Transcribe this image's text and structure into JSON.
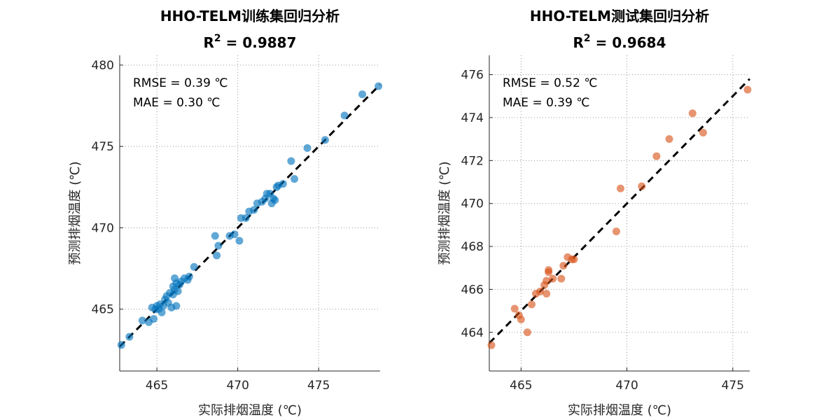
{
  "chart_data": [
    {
      "type": "scatter",
      "title": "HHO-TELM训练集回归分析",
      "r2_label": "R",
      "r2_sup": "2",
      "r2_value": " = 0.9887",
      "xlabel": "实际排烟温度 (℃)",
      "ylabel": "预测排烟温度 (℃)",
      "metrics": [
        "RMSE = 0.39 ℃",
        "MAE = 0.30 ℃"
      ],
      "xlim": [
        462.7,
        478.8
      ],
      "ylim": [
        461.2,
        480.6
      ],
      "xticks": [
        465,
        470,
        475
      ],
      "yticks": [
        465,
        470,
        475,
        480
      ],
      "grid": true,
      "point_color": "#0072BD",
      "fit_line": {
        "x": [
          462.7,
          478.8
        ],
        "y": [
          462.7,
          478.8
        ]
      },
      "series": [
        {
          "x": [
            462.8,
            463.3,
            464.1,
            464.5,
            464.7,
            464.8,
            464.9,
            465.0,
            465.1,
            465.2,
            465.3,
            465.4,
            465.5,
            465.6,
            465.7,
            465.8,
            465.9,
            466.0,
            466.0,
            466.1,
            466.1,
            466.2,
            466.2,
            466.3,
            466.4,
            466.5,
            466.7,
            466.9,
            467.0,
            467.3,
            468.6,
            468.7,
            468.8,
            469.5,
            469.8,
            470.1,
            470.2,
            470.5,
            470.7,
            471.0,
            471.2,
            471.5,
            471.7,
            471.8,
            472.0,
            472.1,
            472.2,
            472.3,
            472.4,
            472.5,
            472.8,
            473.3,
            473.5,
            474.3,
            475.4,
            476.6,
            477.7,
            478.7
          ],
          "y": [
            462.8,
            463.3,
            464.3,
            464.2,
            465.1,
            464.4,
            465.0,
            465.2,
            465.0,
            465.3,
            464.8,
            465.2,
            465.6,
            465.8,
            465.4,
            466.0,
            465.1,
            466.4,
            465.9,
            466.9,
            466.2,
            466.6,
            465.2,
            466.1,
            466.5,
            466.7,
            466.9,
            466.8,
            467.0,
            467.6,
            469.5,
            468.3,
            468.9,
            469.5,
            469.6,
            469.2,
            470.6,
            470.6,
            471.0,
            471.1,
            471.5,
            471.6,
            471.8,
            472.1,
            472.1,
            471.5,
            471.8,
            471.7,
            472.5,
            472.6,
            472.7,
            474.1,
            473.0,
            474.9,
            475.4,
            476.9,
            478.2,
            478.7
          ]
        }
      ]
    },
    {
      "type": "scatter",
      "title": "HHO-TELM测试集回归分析",
      "r2_label": "R",
      "r2_sup": "2",
      "r2_value": " = 0.9684",
      "xlabel": "实际排烟温度 (℃)",
      "ylabel": "预测排烟温度 (℃)",
      "metrics": [
        "RMSE = 0.52 ℃",
        "MAE = 0.39 ℃"
      ],
      "xlim": [
        463.5,
        475.8
      ],
      "ylim": [
        462.2,
        476.9
      ],
      "xticks": [
        465,
        470,
        475
      ],
      "yticks": [
        464,
        466,
        468,
        470,
        472,
        474,
        476
      ],
      "grid": true,
      "point_color": "#D95319",
      "fit_line": {
        "x": [
          463.5,
          475.8
        ],
        "y": [
          463.5,
          475.8
        ]
      },
      "series": [
        {
          "x": [
            463.6,
            464.7,
            464.9,
            465.0,
            465.3,
            465.5,
            465.7,
            465.9,
            466.1,
            466.2,
            466.2,
            466.3,
            466.3,
            466.5,
            466.9,
            467.0,
            467.2,
            467.4,
            467.5,
            469.5,
            469.7,
            470.7,
            471.4,
            472.0,
            473.1,
            473.6,
            475.7
          ],
          "y": [
            463.4,
            465.1,
            464.8,
            464.6,
            464.0,
            465.3,
            465.8,
            465.9,
            466.2,
            465.8,
            466.4,
            466.8,
            466.9,
            466.5,
            466.5,
            467.1,
            467.5,
            467.4,
            467.4,
            468.7,
            470.7,
            470.8,
            472.2,
            473.0,
            474.2,
            473.3,
            475.3
          ]
        }
      ]
    }
  ]
}
